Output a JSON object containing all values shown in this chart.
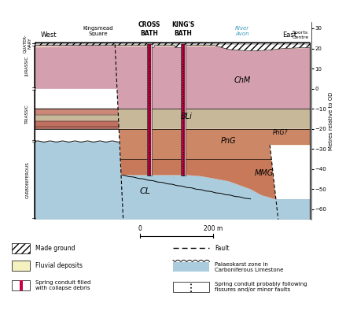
{
  "fig_width": 4.4,
  "fig_height": 4.04,
  "dpi": 100,
  "colors": {
    "ChM": "#d4a0b0",
    "BLi": "#c8b89a",
    "PnG": "#cc8866",
    "MMG": "#c8795a",
    "CL": "#aaccdd",
    "triassic1": "#cc8877",
    "triassic2": "#c07060",
    "triassic3": "#bb6655",
    "fluvial": "#f5f0c0",
    "spring_red": "#cc0044",
    "spring_bg": "#f5eef0"
  },
  "yticks": [
    30,
    20,
    10,
    0,
    -10,
    -20,
    -30,
    -40,
    -50,
    -60
  ],
  "ylabel": "Metres relative to OD"
}
